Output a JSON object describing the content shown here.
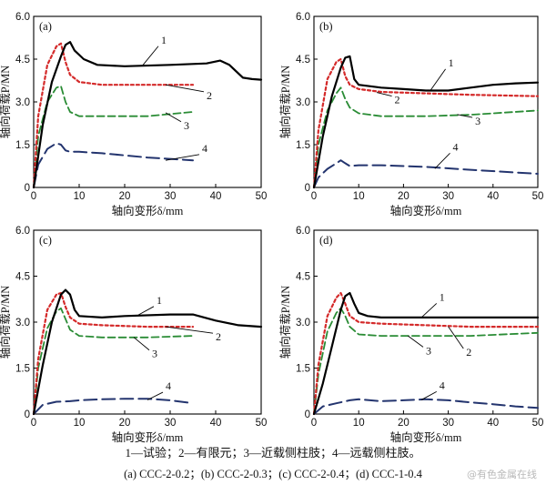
{
  "figure": {
    "legend_text": "1—试验；2—有限元；3—近载侧柱肢；4—远载侧柱肢。",
    "caption_text": "(a) CCC-2-0.2；(b) CCC-2-0.3；(c) CCC-2-0.4；(d) CCC-1-0.4",
    "watermark": "@有色金属在线"
  },
  "style": {
    "series_colors": [
      "#000000",
      "#d42a2a",
      "#2a8c35",
      "#23346e"
    ],
    "axis_color": "#000000"
  },
  "chart_data": [
    {
      "type": "line",
      "panel_label": "(a)",
      "xlabel": "轴向变形δ/mm",
      "ylabel": "轴向荷载P/MN",
      "xlim": [
        0,
        50
      ],
      "ylim": [
        0,
        6.0
      ],
      "xticks": [
        0,
        10,
        20,
        30,
        40,
        50
      ],
      "yticks": [
        "0",
        "1.5",
        "3.0",
        "4.5",
        "6.0"
      ],
      "series": [
        {
          "name": "1",
          "x": [
            0,
            2,
            4,
            6,
            7,
            8,
            9,
            11,
            14,
            20,
            30,
            38,
            41,
            43,
            46,
            48,
            50
          ],
          "y": [
            0,
            2.2,
            3.7,
            4.6,
            5.0,
            5.1,
            4.8,
            4.5,
            4.3,
            4.25,
            4.3,
            4.35,
            4.45,
            4.3,
            3.85,
            3.8,
            3.78
          ]
        },
        {
          "name": "2",
          "x": [
            0,
            1,
            3,
            5,
            6,
            7,
            8,
            10,
            15,
            25,
            35
          ],
          "y": [
            0,
            2.5,
            4.3,
            4.95,
            5.05,
            4.4,
            3.95,
            3.7,
            3.6,
            3.6,
            3.6
          ]
        },
        {
          "name": "3",
          "x": [
            0,
            1,
            3,
            5,
            6,
            7,
            8,
            10,
            15,
            25,
            35
          ],
          "y": [
            0,
            1.8,
            3.0,
            3.5,
            3.55,
            3.0,
            2.65,
            2.5,
            2.5,
            2.5,
            2.65
          ]
        },
        {
          "name": "4",
          "x": [
            0,
            1,
            3,
            5,
            6,
            7,
            8,
            10,
            15,
            25,
            35
          ],
          "y": [
            0,
            0.8,
            1.35,
            1.55,
            1.5,
            1.3,
            1.25,
            1.25,
            1.2,
            1.05,
            0.95
          ]
        }
      ],
      "annotations": [
        {
          "text": "1",
          "x": 28,
          "y": 5.05
        },
        {
          "text": "2",
          "x": 38,
          "y": 3.1
        },
        {
          "text": "3",
          "x": 33,
          "y": 2.05
        },
        {
          "text": "4",
          "x": 37,
          "y": 1.25
        }
      ]
    },
    {
      "type": "line",
      "panel_label": "(b)",
      "xlabel": "轴向变形δ/mm",
      "ylabel": "轴向荷载P/MN",
      "xlim": [
        0,
        50
      ],
      "ylim": [
        0,
        6.0
      ],
      "xticks": [
        0,
        10,
        20,
        30,
        40,
        50
      ],
      "yticks": [
        "0",
        "1.5",
        "3.0",
        "4.5",
        "6.0"
      ],
      "series": [
        {
          "name": "1",
          "x": [
            0,
            2,
            4,
            6,
            7,
            8,
            9,
            10,
            15,
            20,
            25,
            30,
            35,
            40,
            45,
            50
          ],
          "y": [
            0,
            1.8,
            3.2,
            4.2,
            4.55,
            4.6,
            3.8,
            3.6,
            3.5,
            3.45,
            3.4,
            3.4,
            3.5,
            3.6,
            3.65,
            3.68
          ]
        },
        {
          "name": "2",
          "x": [
            0,
            1,
            3,
            5,
            6,
            7,
            8,
            10,
            15,
            25,
            35,
            50
          ],
          "y": [
            0,
            2.0,
            3.8,
            4.4,
            4.5,
            3.9,
            3.6,
            3.45,
            3.35,
            3.3,
            3.25,
            3.2
          ]
        },
        {
          "name": "3",
          "x": [
            0,
            1,
            3,
            5,
            6,
            7,
            8,
            10,
            15,
            25,
            35,
            50
          ],
          "y": [
            0,
            1.5,
            2.7,
            3.3,
            3.5,
            3.1,
            2.8,
            2.6,
            2.5,
            2.5,
            2.55,
            2.7
          ]
        },
        {
          "name": "4",
          "x": [
            0,
            1,
            3,
            5,
            6,
            7,
            8,
            10,
            15,
            25,
            35,
            50
          ],
          "y": [
            0,
            0.35,
            0.65,
            0.85,
            0.95,
            0.85,
            0.75,
            0.78,
            0.78,
            0.72,
            0.62,
            0.48
          ]
        }
      ],
      "annotations": [
        {
          "text": "1",
          "x": 30,
          "y": 4.25
        },
        {
          "text": "2",
          "x": 18,
          "y": 2.95
        },
        {
          "text": "3",
          "x": 36,
          "y": 2.2
        },
        {
          "text": "4",
          "x": 31,
          "y": 1.3
        }
      ]
    },
    {
      "type": "line",
      "panel_label": "(c)",
      "xlabel": "轴向变形δ/mm",
      "ylabel": "轴向荷载P/MN",
      "xlim": [
        0,
        50
      ],
      "ylim": [
        0,
        6.0
      ],
      "xticks": [
        0,
        10,
        20,
        30,
        40,
        50
      ],
      "yticks": [
        "0",
        "1.5",
        "3.0",
        "4.5",
        "6.0"
      ],
      "series": [
        {
          "name": "1",
          "x": [
            0,
            2,
            4,
            6,
            7,
            8,
            9,
            10,
            15,
            20,
            30,
            35,
            40,
            45,
            50
          ],
          "y": [
            0,
            1.6,
            3.0,
            3.9,
            4.05,
            3.9,
            3.4,
            3.2,
            3.15,
            3.2,
            3.25,
            3.25,
            3.05,
            2.9,
            2.85
          ]
        },
        {
          "name": "2",
          "x": [
            0,
            1,
            3,
            5,
            6,
            7,
            8,
            10,
            15,
            25,
            35
          ],
          "y": [
            0,
            1.8,
            3.4,
            3.9,
            3.95,
            3.5,
            3.15,
            2.95,
            2.9,
            2.85,
            2.85
          ]
        },
        {
          "name": "3",
          "x": [
            0,
            1,
            3,
            5,
            6,
            7,
            8,
            10,
            15,
            25,
            35
          ],
          "y": [
            0,
            1.5,
            2.8,
            3.35,
            3.45,
            3.1,
            2.75,
            2.55,
            2.5,
            2.5,
            2.55
          ]
        },
        {
          "name": "4",
          "x": [
            0,
            2,
            5,
            8,
            10,
            15,
            20,
            25,
            30,
            35
          ],
          "y": [
            0,
            0.3,
            0.4,
            0.42,
            0.45,
            0.48,
            0.5,
            0.5,
            0.45,
            0.35
          ]
        }
      ],
      "annotations": [
        {
          "text": "1",
          "x": 27,
          "y": 3.6
        },
        {
          "text": "2",
          "x": 40,
          "y": 2.4
        },
        {
          "text": "3",
          "x": 26,
          "y": 1.85
        },
        {
          "text": "4",
          "x": 29,
          "y": 0.8
        }
      ]
    },
    {
      "type": "line",
      "panel_label": "(d)",
      "xlabel": "轴向变形δ/mm",
      "ylabel": "轴向荷载P/MN",
      "xlim": [
        0,
        50
      ],
      "ylim": [
        0,
        6.0
      ],
      "xticks": [
        0,
        10,
        20,
        30,
        40,
        50
      ],
      "yticks": [
        "0",
        "1.5",
        "3.0",
        "4.5",
        "6.0"
      ],
      "series": [
        {
          "name": "1",
          "x": [
            0,
            2,
            4,
            6,
            7,
            8,
            9,
            10,
            12,
            15,
            20,
            30,
            40,
            50
          ],
          "y": [
            0,
            1.0,
            2.2,
            3.4,
            3.85,
            3.95,
            3.6,
            3.3,
            3.2,
            3.15,
            3.15,
            3.15,
            3.15,
            3.15
          ]
        },
        {
          "name": "2",
          "x": [
            0,
            1,
            3,
            5,
            6,
            7,
            8,
            10,
            15,
            25,
            35,
            50
          ],
          "y": [
            0,
            1.6,
            3.2,
            3.8,
            3.95,
            3.6,
            3.2,
            3.0,
            2.95,
            2.9,
            2.85,
            2.85
          ]
        },
        {
          "name": "3",
          "x": [
            0,
            1,
            3,
            5,
            6,
            7,
            8,
            10,
            15,
            25,
            35,
            50
          ],
          "y": [
            0,
            1.3,
            2.7,
            3.3,
            3.45,
            3.2,
            2.85,
            2.6,
            2.55,
            2.55,
            2.55,
            2.65
          ]
        },
        {
          "name": "4",
          "x": [
            0,
            2,
            5,
            8,
            10,
            15,
            20,
            25,
            30,
            35,
            40,
            45,
            50
          ],
          "y": [
            0,
            0.25,
            0.35,
            0.45,
            0.48,
            0.42,
            0.45,
            0.48,
            0.45,
            0.38,
            0.32,
            0.25,
            0.2
          ]
        }
      ],
      "annotations": [
        {
          "text": "1",
          "x": 28,
          "y": 3.7
        },
        {
          "text": "2",
          "x": 34,
          "y": 1.9
        },
        {
          "text": "3",
          "x": 25,
          "y": 1.95
        },
        {
          "text": "4",
          "x": 28,
          "y": 0.82
        }
      ]
    }
  ]
}
